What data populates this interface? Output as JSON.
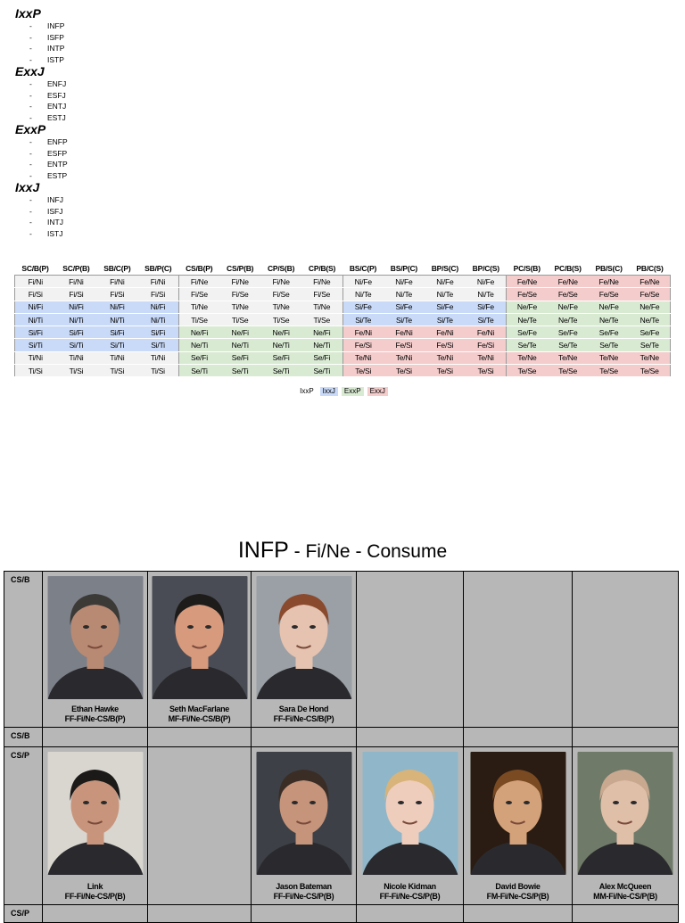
{
  "groups": [
    {
      "title": "IxxP",
      "items": [
        "INFP",
        "ISFP",
        "INTP",
        "ISTP"
      ]
    },
    {
      "title": "ExxJ",
      "items": [
        "ENFJ",
        "ESFJ",
        "ENTJ",
        "ESTJ"
      ]
    },
    {
      "title": "ExxP",
      "items": [
        "ENFP",
        "ESFP",
        "ENTP",
        "ESTP"
      ]
    },
    {
      "title": "IxxJ",
      "items": [
        "INFJ",
        "ISFJ",
        "INTJ",
        "ISTJ"
      ]
    }
  ],
  "dash": "-",
  "table": {
    "headers": [
      "SC/B(P)",
      "SC/P(B)",
      "SB/C(P)",
      "SB/P(C)",
      "CS/B(P)",
      "CS/P(B)",
      "CP/S(B)",
      "CP/B(S)",
      "BS/C(P)",
      "BS/P(C)",
      "BP/S(C)",
      "BP/C(S)",
      "PC/S(B)",
      "PC/B(S)",
      "PB/S(C)",
      "PB/C(S)"
    ],
    "rows": [
      [
        "Fi/Ni",
        "Fi/Ni",
        "Fi/Ni",
        "Fi/Ni",
        "Fi/Ne",
        "Fi/Ne",
        "Fi/Ne",
        "Fi/Ne",
        "Ni/Fe",
        "Ni/Fe",
        "Ni/Fe",
        "Ni/Fe",
        "Fe/Ne",
        "Fe/Ne",
        "Fe/Ne",
        "Fe/Ne"
      ],
      [
        "Fi/Si",
        "Fi/Si",
        "Fi/Si",
        "Fi/Si",
        "Fi/Se",
        "Fi/Se",
        "Fi/Se",
        "Fi/Se",
        "Ni/Te",
        "Ni/Te",
        "Ni/Te",
        "Ni/Te",
        "Fe/Se",
        "Fe/Se",
        "Fe/Se",
        "Fe/Se"
      ],
      [
        "Ni/Fi",
        "Ni/Fi",
        "Ni/Fi",
        "Ni/Fi",
        "Ti/Ne",
        "Ti/Ne",
        "Ti/Ne",
        "Ti/Ne",
        "Si/Fe",
        "Si/Fe",
        "Si/Fe",
        "Si/Fe",
        "Ne/Fe",
        "Ne/Fe",
        "Ne/Fe",
        "Ne/Fe"
      ],
      [
        "Ni/Ti",
        "Ni/Ti",
        "Ni/Ti",
        "Ni/Ti",
        "Ti/Se",
        "Ti/Se",
        "Ti/Se",
        "Ti/Se",
        "Si/Te",
        "Si/Te",
        "Si/Te",
        "Si/Te",
        "Ne/Te",
        "Ne/Te",
        "Ne/Te",
        "Ne/Te"
      ],
      [
        "Si/Fi",
        "Si/Fi",
        "Si/Fi",
        "Si/Fi",
        "Ne/Fi",
        "Ne/Fi",
        "Ne/Fi",
        "Ne/Fi",
        "Fe/Ni",
        "Fe/Ni",
        "Fe/Ni",
        "Fe/Ni",
        "Se/Fe",
        "Se/Fe",
        "Se/Fe",
        "Se/Fe"
      ],
      [
        "Si/Ti",
        "Si/Ti",
        "Si/Ti",
        "Si/Ti",
        "Ne/Ti",
        "Ne/Ti",
        "Ne/Ti",
        "Ne/Ti",
        "Fe/Si",
        "Fe/Si",
        "Fe/Si",
        "Fe/Si",
        "Se/Te",
        "Se/Te",
        "Se/Te",
        "Se/Te"
      ],
      [
        "Ti/Ni",
        "Ti/Ni",
        "Ti/Ni",
        "Ti/Ni",
        "Se/Fi",
        "Se/Fi",
        "Se/Fi",
        "Se/Fi",
        "Te/Ni",
        "Te/Ni",
        "Te/Ni",
        "Te/Ni",
        "Te/Ne",
        "Te/Ne",
        "Te/Ne",
        "Te/Ne"
      ],
      [
        "Ti/Si",
        "Ti/Si",
        "Ti/Si",
        "Ti/Si",
        "Se/Ti",
        "Se/Ti",
        "Se/Ti",
        "Se/Ti",
        "Te/Si",
        "Te/Si",
        "Te/Si",
        "Te/Si",
        "Te/Se",
        "Te/Se",
        "Te/Se",
        "Te/Se"
      ]
    ],
    "row_colors": [
      [
        "ixxp",
        "ixxp",
        "ixxp",
        "exxj"
      ],
      [
        "ixxp",
        "ixxp",
        "ixxp",
        "exxj"
      ],
      [
        "ixxj",
        "ixxp",
        "ixxj",
        "exxp"
      ],
      [
        "ixxj",
        "ixxp",
        "ixxj",
        "exxp"
      ],
      [
        "ixxj",
        "exxp",
        "exxj",
        "exxp"
      ],
      [
        "ixxj",
        "exxp",
        "exxj",
        "exxp"
      ],
      [
        "ixxp",
        "exxp",
        "exxj",
        "exxj"
      ],
      [
        "ixxp",
        "exxp",
        "exxj",
        "exxj"
      ]
    ],
    "colors": {
      "ixxp": "#f2f2f2",
      "ixxj": "#c9daf8",
      "exxp": "#d9ead3",
      "exxj": "#f4cccc"
    }
  },
  "legend": [
    {
      "label": "IxxP",
      "color": "#ffffff"
    },
    {
      "label": "IxxJ",
      "color": "#c9daf8"
    },
    {
      "label": "ExxP",
      "color": "#d9ead3"
    },
    {
      "label": "ExxJ",
      "color": "#f4cccc"
    }
  ],
  "heading": {
    "type": "INFP",
    "rest": " - Fi/Ne - Consume"
  },
  "grid": {
    "rows": [
      {
        "label": "CS/B",
        "people": [
          {
            "name": "Ethan Hawke",
            "code": "FF-Fi/Ne-CS/B(P)",
            "tone": [
              "#3c3a36",
              "#b98a73",
              "#7c8089"
            ]
          },
          {
            "name": "Seth MacFarlane",
            "code": "MF-Fi/Ne-CS/B(P)",
            "tone": [
              "#1e1c1a",
              "#d79a7d",
              "#4a4c55"
            ]
          },
          {
            "name": "Sara De Hond",
            "code": "FF-Fi/Ne-CS/B(P)",
            "tone": [
              "#8a4a2e",
              "#e5c3b0",
              "#9aa0a6"
            ]
          },
          null,
          null,
          null
        ]
      },
      {
        "label": "CS/B",
        "people": [
          null,
          null,
          null,
          null,
          null,
          null
        ]
      },
      {
        "label": "CS/P",
        "people": [
          {
            "name": "Link",
            "code": "FF-Fi/Ne-CS/P(B)",
            "tone": [
              "#1b1a18",
              "#c8957c",
              "#d9d6d0"
            ]
          },
          null,
          {
            "name": "Jason Bateman",
            "code": "FF-Fi/Ne-CS/P(B)",
            "tone": [
              "#3a2d25",
              "#c5947b",
              "#3d4046"
            ]
          },
          {
            "name": "Nicole Kidman",
            "code": "FF-Fi/Ne-CS/P(B)",
            "tone": [
              "#d8b37a",
              "#efcdbd",
              "#8fb7c9"
            ]
          },
          {
            "name": "David Bowie",
            "code": "FM-Fi/Ne-CS/P(B)",
            "tone": [
              "#7a4a22",
              "#d4a27a",
              "#2a1c12"
            ]
          },
          {
            "name": "Alex McQueen",
            "code": "MM-Fi/Ne-CS/P(B)",
            "tone": [
              "#c9a890",
              "#e0bfa9",
              "#6f7a69"
            ]
          }
        ]
      },
      {
        "label": "CS/P",
        "people": [
          null,
          null,
          null,
          null,
          null,
          null
        ]
      }
    ]
  }
}
